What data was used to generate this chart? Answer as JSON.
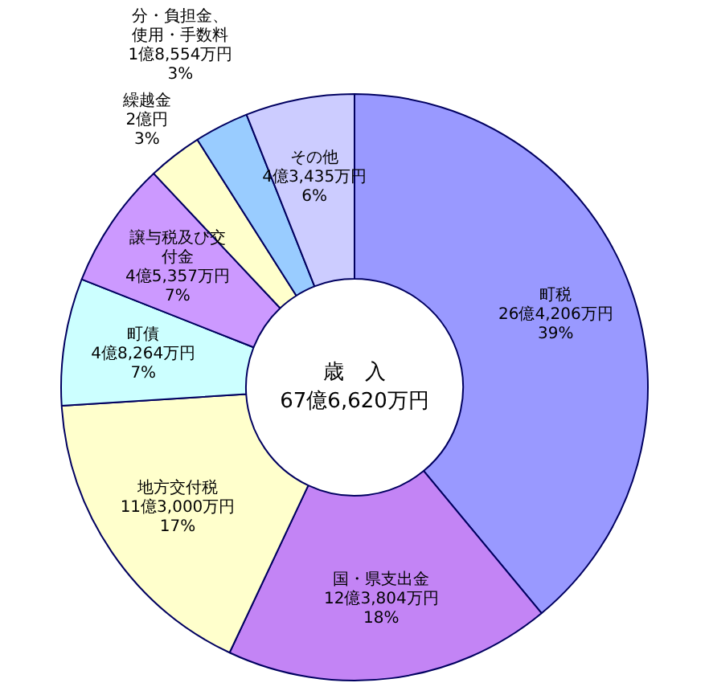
{
  "chart_data": {
    "type": "donut",
    "title": "歳　入",
    "subtitle": "67億6,620万円",
    "categories": [
      "町税",
      "国・県支出金",
      "地方交付税",
      "町債",
      "譲与税及び交付金",
      "繰越金",
      "分・負担金、使用・手数料",
      "その他"
    ],
    "values": [
      39,
      18,
      17,
      7,
      7,
      3,
      3,
      6
    ],
    "colors": [
      "#9999ff",
      "#c384f5",
      "#ffffcc",
      "#ccffff",
      "#cc99ff",
      "#ffffcc",
      "#99ccff",
      "#ccccff"
    ],
    "value_labels": [
      "26億4,206万円\n39%",
      "12億3,804万円\n18%",
      "11億3,000万円\n17%",
      "4億8,264万円\n7%",
      "4億5,357万円\n7%",
      "2億円\n3%",
      "1億8,554万円\n3%",
      "4億3,435万円\n6%"
    ]
  }
}
